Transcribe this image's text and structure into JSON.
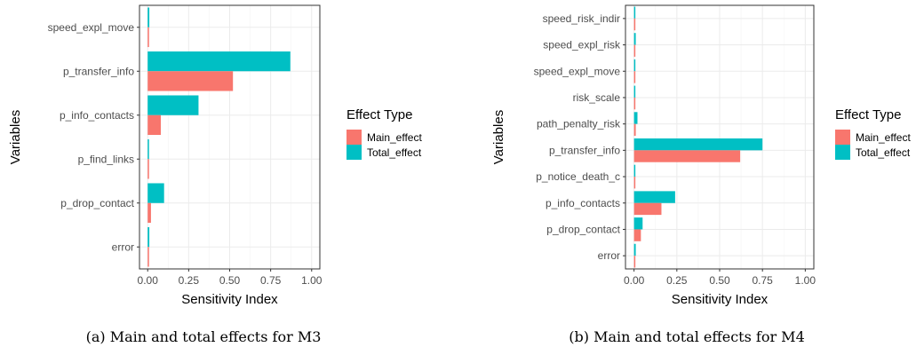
{
  "chart_data": [
    {
      "type": "bar",
      "orientation": "horizontal",
      "caption": "(a) Main and total effects for M3",
      "xlabel": "Sensitivity Index",
      "ylabel": "Variables",
      "xlim": [
        0,
        1
      ],
      "xticks": [
        "0.00",
        "0.25",
        "0.50",
        "0.75",
        "1.00"
      ],
      "grid": true,
      "legend_title": "Effect Type",
      "legend_position": "right",
      "categories": [
        "speed_expl_move",
        "p_transfer_info",
        "p_info_contacts",
        "p_find_links",
        "p_drop_contact",
        "error"
      ],
      "series": [
        {
          "name": "Main_effect",
          "color": "#F8766D",
          "values": [
            0.0,
            0.52,
            0.08,
            0.0,
            0.02,
            0.0
          ]
        },
        {
          "name": "Total_effect",
          "color": "#00BFC4",
          "values": [
            0.01,
            0.87,
            0.31,
            0.0,
            0.1,
            0.01
          ]
        }
      ]
    },
    {
      "type": "bar",
      "orientation": "horizontal",
      "caption": "(b) Main and total effects for M4",
      "xlabel": "Sensitivity Index",
      "ylabel": "Variables",
      "xlim": [
        0,
        1
      ],
      "xticks": [
        "0.00",
        "0.25",
        "0.50",
        "0.75",
        "1.00"
      ],
      "grid": true,
      "legend_title": "Effect Type",
      "legend_position": "right",
      "categories": [
        "speed_risk_indir",
        "speed_expl_risk",
        "speed_expl_move",
        "risk_scale",
        "path_penalty_risk",
        "p_transfer_info",
        "p_notice_death_c",
        "p_info_contacts",
        "p_drop_contact",
        "error"
      ],
      "series": [
        {
          "name": "Main_effect",
          "color": "#F8766D",
          "values": [
            0.0,
            0.0,
            0.0,
            0.0,
            0.01,
            0.62,
            0.0,
            0.16,
            0.04,
            0.0
          ]
        },
        {
          "name": "Total_effect",
          "color": "#00BFC4",
          "values": [
            0.0,
            0.01,
            0.0,
            0.0,
            0.02,
            0.75,
            0.0,
            0.24,
            0.05,
            0.01
          ]
        }
      ]
    }
  ]
}
